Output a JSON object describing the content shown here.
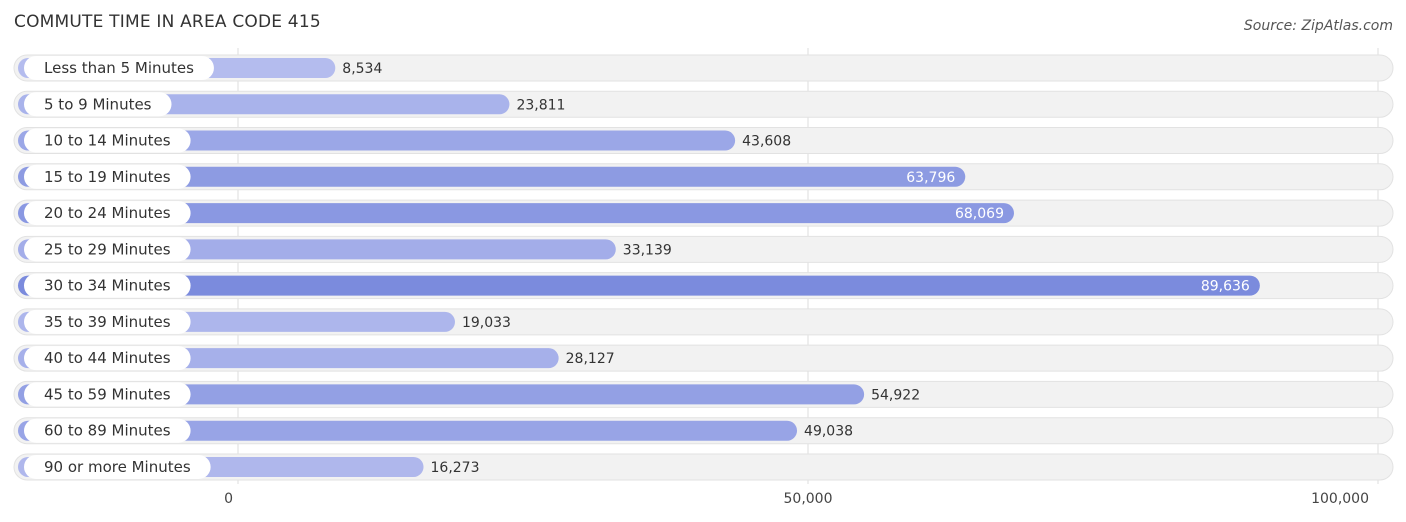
{
  "chart_data": {
    "type": "bar",
    "orientation": "horizontal",
    "title": "COMMUTE TIME IN AREA CODE 415",
    "source": "Source: ZipAtlas.com",
    "categories": [
      "Less than 5 Minutes",
      "5 to 9 Minutes",
      "10 to 14 Minutes",
      "15 to 19 Minutes",
      "20 to 24 Minutes",
      "25 to 29 Minutes",
      "30 to 34 Minutes",
      "35 to 39 Minutes",
      "40 to 44 Minutes",
      "45 to 59 Minutes",
      "60 to 89 Minutes",
      "90 or more Minutes"
    ],
    "values": [
      8534,
      23811,
      43608,
      63796,
      68069,
      33139,
      89636,
      19033,
      28127,
      54922,
      49038,
      16273
    ],
    "value_labels": [
      "8,534",
      "23,811",
      "43,608",
      "63,796",
      "68,069",
      "33,139",
      "89,636",
      "19,033",
      "28,127",
      "54,922",
      "49,038",
      "16,273"
    ],
    "xlim": [
      0,
      100000
    ],
    "ticks": [
      0,
      50000,
      100000
    ],
    "tick_labels": [
      "0",
      "50,000",
      "100,000"
    ],
    "grid": true,
    "colors": {
      "bar_light": "#b4bcee",
      "bar_dark": "#7b8bdd",
      "track": "#f2f2f2",
      "track_border": "#e2e2e2",
      "grid": "#dddddd"
    }
  }
}
